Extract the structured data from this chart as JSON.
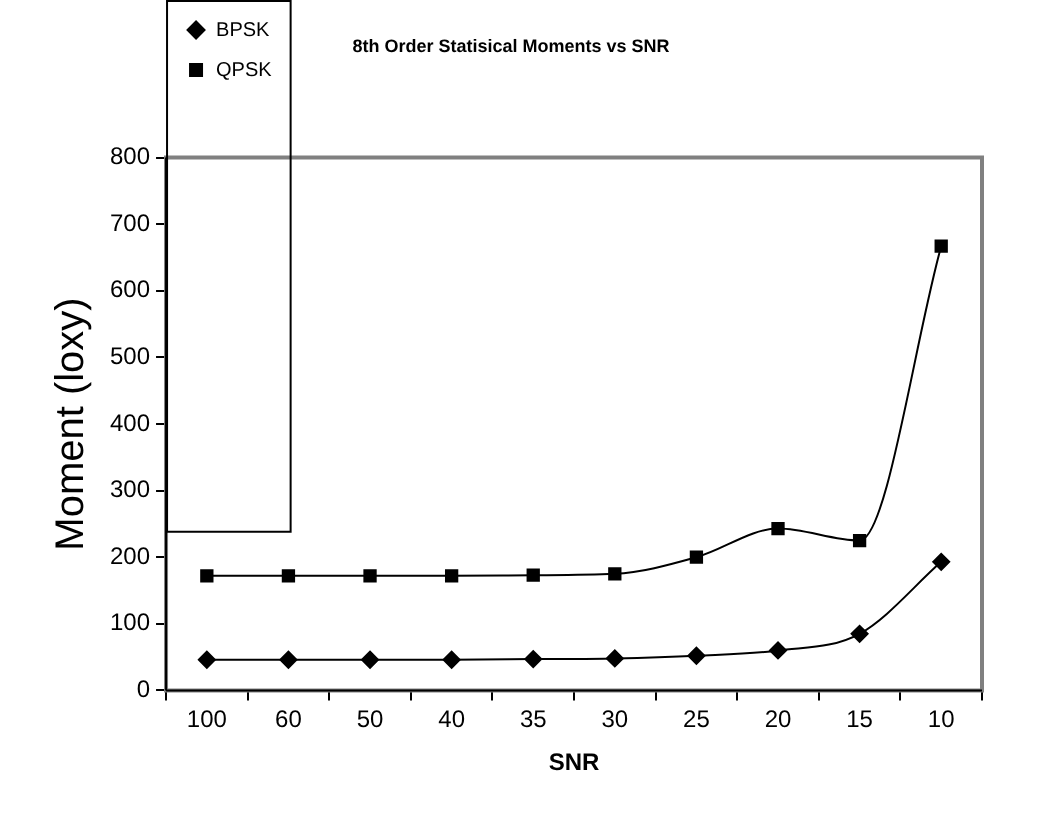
{
  "chart_data": {
    "type": "line",
    "title": "8th Order Statisical Moments vs SNR",
    "xlabel": "SNR",
    "ylabel": "Moment (loxy)",
    "categories": [
      "100",
      "60",
      "50",
      "40",
      "35",
      "30",
      "25",
      "20",
      "15",
      "10"
    ],
    "series": [
      {
        "name": "BPSK",
        "color": "#000000",
        "marker": "diamond",
        "values": [
          46,
          46,
          46,
          46,
          47,
          48,
          52,
          60,
          85,
          193
        ]
      },
      {
        "name": "QPSK",
        "color": "#000000",
        "marker": "square",
        "values": [
          172,
          172,
          172,
          172,
          173,
          175,
          200,
          243,
          225,
          667
        ]
      }
    ],
    "ylim": [
      0,
      800
    ],
    "yticks": [
      0,
      100,
      200,
      300,
      400,
      500,
      600,
      700,
      800
    ],
    "grid": false,
    "legend": "top left",
    "line_style": "solid"
  }
}
